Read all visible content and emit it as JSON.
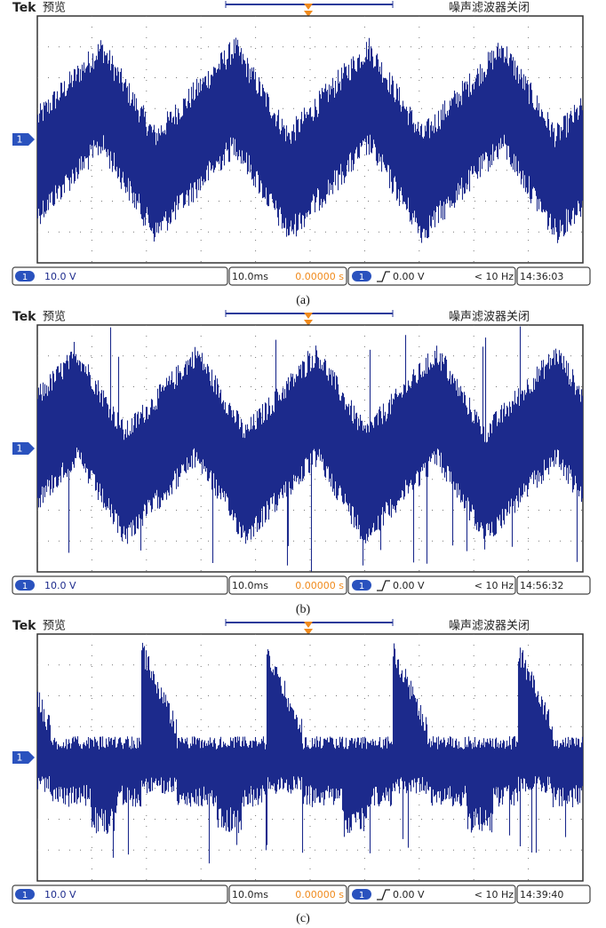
{
  "panels": [
    {
      "header": {
        "brand": "Tek",
        "mode": "预览",
        "filter": "噪声滤波器关闭"
      },
      "channel_marker": "1",
      "status": {
        "channel": "1",
        "scale": "10.0 V",
        "timebase": "10.0ms",
        "position": "0.00000 s",
        "trigger_channel": "1",
        "trigger_level": "0.00 V",
        "frequency": "< 10 Hz",
        "clock": "14:36:03"
      },
      "caption": "(a)"
    },
    {
      "header": {
        "brand": "Tek",
        "mode": "预览",
        "filter": "噪声滤波器关闭"
      },
      "channel_marker": "1",
      "status": {
        "channel": "1",
        "scale": "10.0 V",
        "timebase": "10.0ms",
        "position": "0.00000 s",
        "trigger_channel": "1",
        "trigger_level": "0.00 V",
        "frequency": "< 10 Hz",
        "clock": "14:56:32"
      },
      "caption": "(b)"
    },
    {
      "header": {
        "brand": "Tek",
        "mode": "预览",
        "filter": "噪声滤波器关闭"
      },
      "channel_marker": "1",
      "status": {
        "channel": "1",
        "scale": "10.0 V",
        "timebase": "10.0ms",
        "position": "0.00000 s",
        "trigger_channel": "1",
        "trigger_level": "0.00 V",
        "frequency": "< 10 Hz",
        "clock": "14:39:40"
      },
      "caption": "(c)"
    }
  ]
}
